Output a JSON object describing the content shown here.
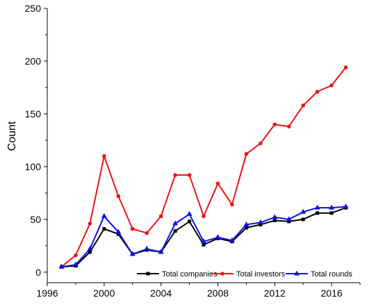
{
  "chart_data": {
    "type": "line",
    "title": "",
    "xlabel": "",
    "ylabel": "Count",
    "xlim": [
      1996,
      2018
    ],
    "ylim": [
      -10,
      250
    ],
    "x_ticks": [
      1996,
      2000,
      2004,
      2008,
      2012,
      2016
    ],
    "y_ticks": [
      0,
      50,
      100,
      150,
      200,
      250
    ],
    "grid": false,
    "legend_position": "bottom",
    "x": [
      1997,
      1998,
      1999,
      2000,
      2001,
      2002,
      2003,
      2004,
      2005,
      2006,
      2007,
      2008,
      2009,
      2010,
      2011,
      2012,
      2013,
      2014,
      2015,
      2016,
      2017
    ],
    "series": [
      {
        "name": "Total companies",
        "color": "#000000",
        "marker": "square",
        "values": [
          5,
          6,
          19,
          41,
          36,
          17,
          21,
          19,
          39,
          48,
          26,
          32,
          29,
          42,
          45,
          49,
          48,
          50,
          56,
          56,
          61
        ]
      },
      {
        "name": "Total investors",
        "color": "#e8141a",
        "marker": "circle",
        "values": [
          5,
          16,
          46,
          110,
          72,
          41,
          37,
          53,
          92,
          92,
          53,
          84,
          64,
          112,
          122,
          140,
          138,
          158,
          171,
          177,
          194
        ]
      },
      {
        "name": "Total rounds",
        "color": "#1010e6",
        "marker": "triangle",
        "values": [
          5,
          7,
          22,
          53,
          38,
          17,
          22,
          19,
          46,
          55,
          29,
          33,
          30,
          45,
          47,
          52,
          50,
          57,
          61,
          61,
          62
        ]
      }
    ]
  }
}
